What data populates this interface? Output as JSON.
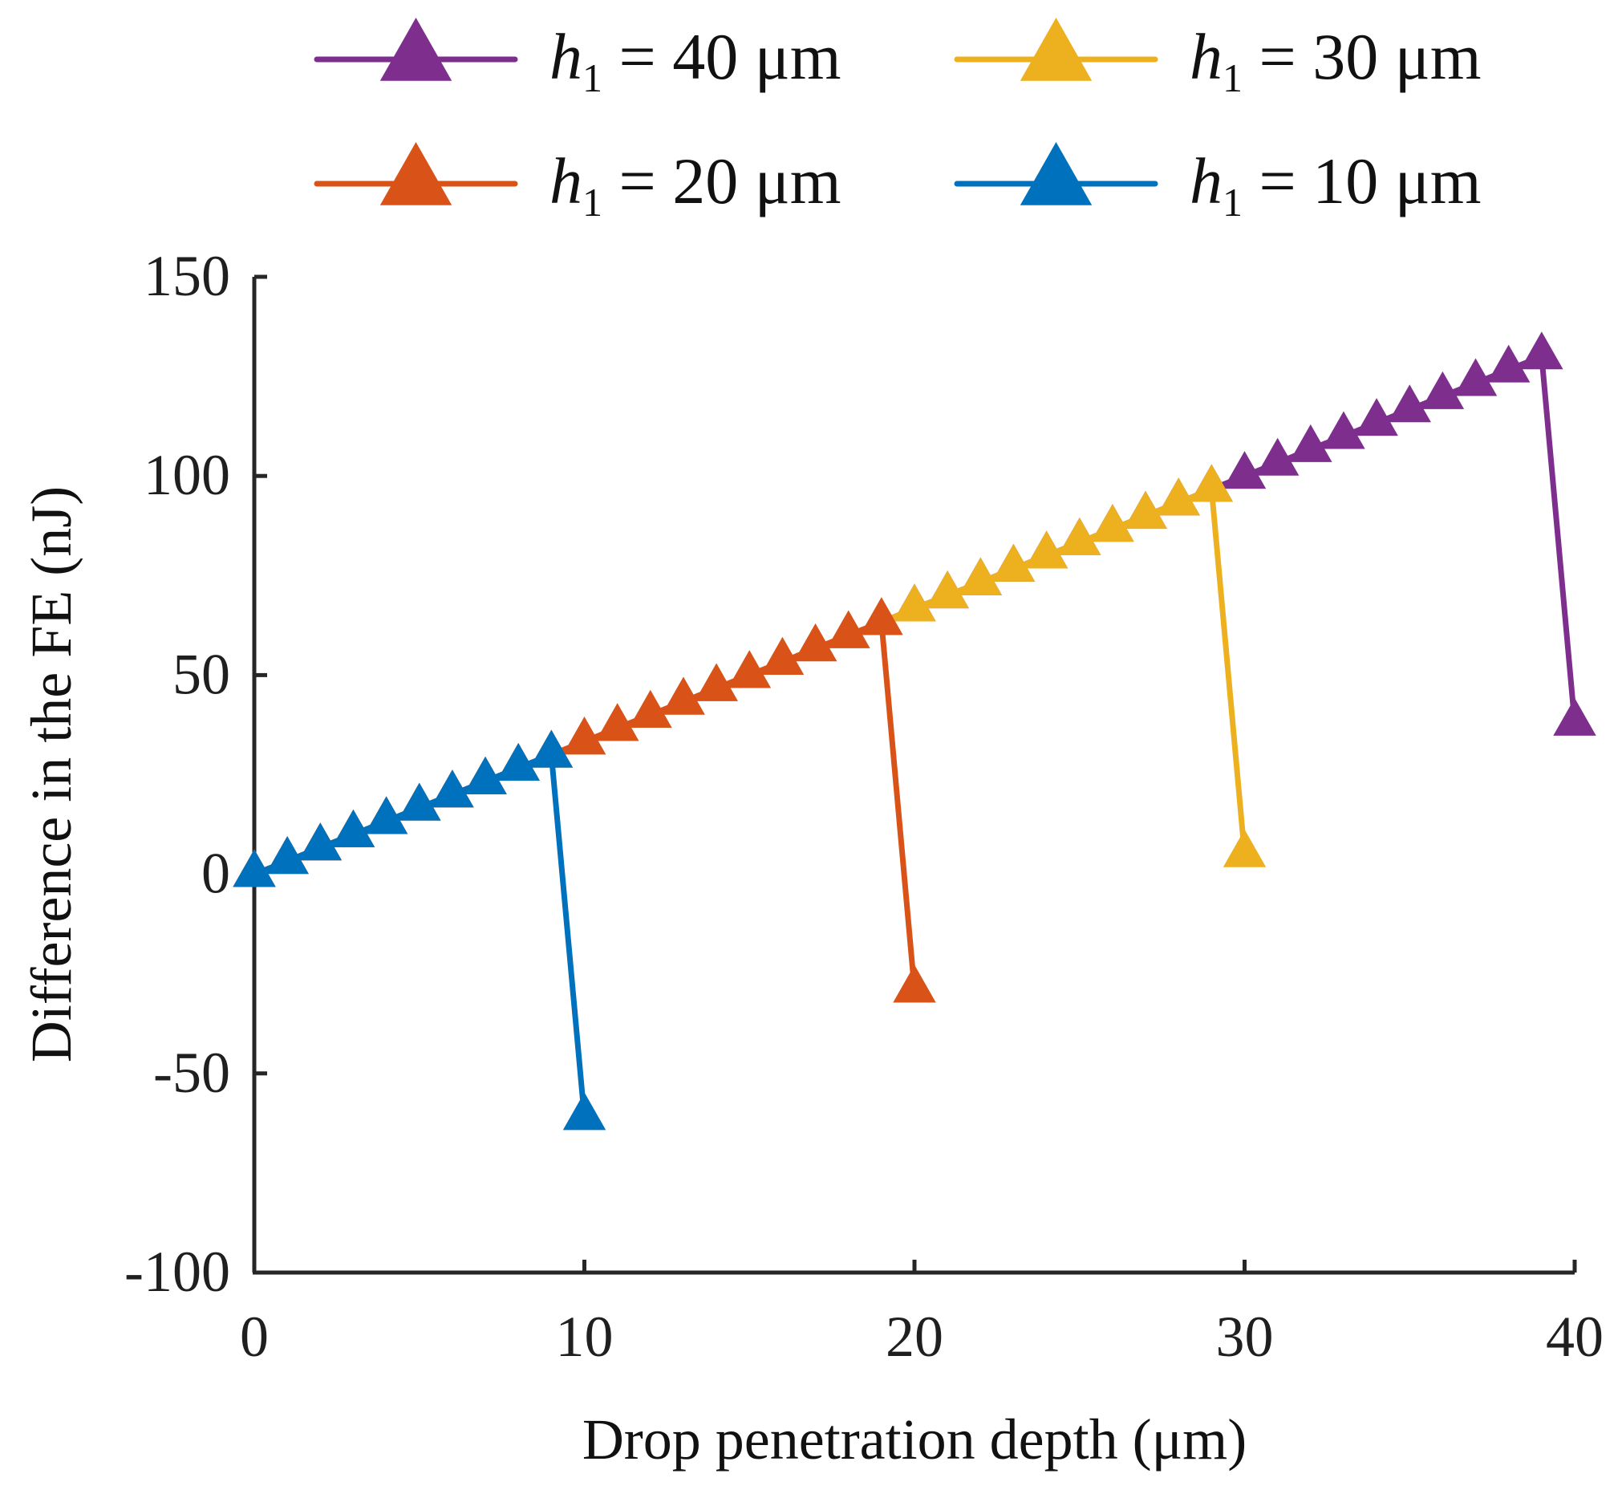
{
  "chart_data": {
    "type": "line",
    "title": "",
    "xlabel": "Drop penetration depth (μm)",
    "ylabel": "Difference in the FE (nJ)",
    "xlim": [
      0,
      40
    ],
    "ylim": [
      -100,
      150
    ],
    "xticks": [
      0,
      10,
      20,
      30,
      40
    ],
    "yticks": [
      -100,
      -50,
      0,
      50,
      100,
      150
    ],
    "xtick_labels": [
      "0",
      "10",
      "20",
      "30",
      "40"
    ],
    "ytick_labels": [
      "-100",
      "-50",
      "0",
      "50",
      "100",
      "150"
    ],
    "grid": false,
    "legend_position": "top",
    "series": [
      {
        "name": "h1 = 40 μm",
        "legend_var": "h",
        "legend_sub": "1",
        "legend_rest": " = 40 μm",
        "color": "#7E2F8E",
        "x": [
          0,
          1,
          2,
          3,
          4,
          5,
          6,
          7,
          8,
          9,
          10,
          11,
          12,
          13,
          14,
          15,
          16,
          17,
          18,
          19,
          20,
          21,
          22,
          23,
          24,
          25,
          26,
          27,
          28,
          29,
          30,
          31,
          32,
          33,
          34,
          35,
          36,
          37,
          38,
          39,
          40
        ],
        "y": [
          0,
          3.3,
          6.7,
          10.0,
          13.3,
          16.7,
          20.0,
          23.3,
          26.7,
          30.0,
          33.3,
          36.7,
          40.0,
          43.3,
          46.7,
          50.0,
          53.3,
          56.7,
          60.0,
          63.3,
          66.7,
          70.0,
          73.3,
          76.7,
          80.0,
          83.3,
          86.7,
          90.0,
          93.3,
          96.7,
          100.0,
          103.3,
          106.7,
          110.0,
          113.3,
          116.7,
          120.0,
          123.3,
          126.7,
          130.0,
          38.0
        ]
      },
      {
        "name": "h1 = 30 μm",
        "legend_var": "h",
        "legend_sub": "1",
        "legend_rest": " = 30 μm",
        "color": "#EDB120",
        "x": [
          0,
          1,
          2,
          3,
          4,
          5,
          6,
          7,
          8,
          9,
          10,
          11,
          12,
          13,
          14,
          15,
          16,
          17,
          18,
          19,
          20,
          21,
          22,
          23,
          24,
          25,
          26,
          27,
          28,
          29,
          30
        ],
        "y": [
          0,
          3.3,
          6.7,
          10.0,
          13.3,
          16.7,
          20.0,
          23.3,
          26.7,
          30.0,
          33.3,
          36.7,
          40.0,
          43.3,
          46.7,
          50.0,
          53.3,
          56.7,
          60.0,
          63.3,
          66.7,
          70.0,
          73.3,
          76.7,
          80.0,
          83.3,
          86.7,
          90.0,
          93.3,
          96.7,
          5.0
        ]
      },
      {
        "name": "h1 = 20 μm",
        "legend_var": "h",
        "legend_sub": "1",
        "legend_rest": " = 20 μm",
        "color": "#D95319",
        "x": [
          0,
          1,
          2,
          3,
          4,
          5,
          6,
          7,
          8,
          9,
          10,
          11,
          12,
          13,
          14,
          15,
          16,
          17,
          18,
          19,
          20
        ],
        "y": [
          0,
          3.3,
          6.7,
          10.0,
          13.3,
          16.7,
          20.0,
          23.3,
          26.7,
          30.0,
          33.3,
          36.7,
          40.0,
          43.3,
          46.7,
          50.0,
          53.3,
          56.7,
          60.0,
          63.3,
          -29.0
        ]
      },
      {
        "name": "h1 = 10 μm",
        "legend_var": "h",
        "legend_sub": "1",
        "legend_rest": " = 10 μm",
        "color": "#0072BD",
        "x": [
          0,
          1,
          2,
          3,
          4,
          5,
          6,
          7,
          8,
          9,
          10
        ],
        "y": [
          0,
          3.3,
          6.7,
          10.0,
          13.3,
          16.7,
          20.0,
          23.3,
          26.7,
          30.0,
          -61.0
        ]
      }
    ]
  }
}
